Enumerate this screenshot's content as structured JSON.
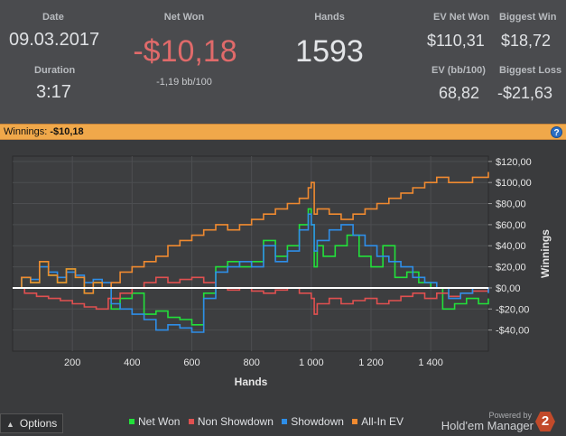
{
  "stats": {
    "date_label": "Date",
    "date_value": "09.03.2017",
    "duration_label": "Duration",
    "duration_value": "3:17",
    "netwon_label": "Net Won",
    "netwon_value": "-$10,18",
    "netwon_bb": "-1,19 bb/100",
    "hands_label": "Hands",
    "hands_value": "1593",
    "evnetwon_label": "EV Net Won",
    "evnetwon_value": "$110,31",
    "evbb_label": "EV (bb/100)",
    "evbb_value": "68,82",
    "biggestwin_label": "Biggest Win",
    "biggestwin_value": "$18,72",
    "biggestloss_label": "Biggest Loss",
    "biggestloss_value": "-$21,63"
  },
  "winbar": {
    "label": "Winnings:",
    "value": "-$10,18",
    "help_icon": "?"
  },
  "footer": {
    "options_label": "Options",
    "options_icon": "caret-up-icon",
    "powered_by": "Powered by",
    "brand": "Hold'em Manager",
    "logo_text": "2"
  },
  "colors": {
    "net_won": "#22e03a",
    "non_showdown": "#e05050",
    "showdown": "#2e8ee8",
    "allin_ev": "#f08a30",
    "accent_bar": "#f0a84a"
  },
  "chart_data": {
    "type": "line",
    "xlabel": "Hands",
    "ylabel": "Winnings",
    "xlim": [
      0,
      1593
    ],
    "ylim": [
      -60,
      125
    ],
    "x_ticks": [
      200,
      400,
      600,
      800,
      1000,
      1200,
      1400
    ],
    "x_tick_labels": [
      "200",
      "400",
      "600",
      "800",
      "1 000",
      "1 200",
      "1 400"
    ],
    "y_ticks": [
      -40,
      -20,
      0,
      20,
      40,
      60,
      80,
      100,
      120
    ],
    "y_tick_labels": [
      "-$40,00",
      "-$20,00",
      "$0,00",
      "$20,00",
      "$40,00",
      "$60,00",
      "$80,00",
      "$100,00",
      "$120,00"
    ],
    "grid": true,
    "legend_position": "bottom",
    "series": [
      {
        "name": "Net Won",
        "color": "#22e03a",
        "x": [
          0,
          30,
          60,
          90,
          120,
          150,
          180,
          210,
          240,
          270,
          300,
          330,
          360,
          400,
          440,
          480,
          520,
          560,
          600,
          640,
          680,
          720,
          760,
          800,
          840,
          880,
          920,
          960,
          990,
          1000,
          1010,
          1020,
          1040,
          1080,
          1120,
          1160,
          1200,
          1240,
          1280,
          1320,
          1360,
          1400,
          1440,
          1480,
          1520,
          1560,
          1593
        ],
        "y": [
          0,
          10,
          5,
          25,
          12,
          5,
          18,
          10,
          -5,
          5,
          0,
          -20,
          -10,
          -5,
          -25,
          -22,
          -28,
          -30,
          -35,
          -5,
          20,
          25,
          20,
          25,
          45,
          30,
          40,
          60,
          75,
          60,
          20,
          40,
          30,
          40,
          50,
          30,
          20,
          40,
          10,
          15,
          5,
          0,
          -20,
          -15,
          -10,
          -15,
          -10
        ]
      },
      {
        "name": "Non Showdown",
        "color": "#e05050",
        "x": [
          0,
          40,
          80,
          120,
          160,
          200,
          240,
          280,
          320,
          360,
          400,
          440,
          480,
          520,
          560,
          600,
          640,
          680,
          720,
          760,
          800,
          840,
          880,
          920,
          960,
          1000,
          1010,
          1020,
          1060,
          1100,
          1140,
          1180,
          1220,
          1260,
          1300,
          1340,
          1380,
          1420,
          1460,
          1500,
          1540,
          1593
        ],
        "y": [
          0,
          -5,
          -8,
          -10,
          -12,
          -15,
          -18,
          -20,
          -10,
          -5,
          0,
          5,
          10,
          5,
          8,
          10,
          5,
          0,
          -2,
          0,
          -3,
          -5,
          -2,
          0,
          -5,
          -10,
          -25,
          -15,
          -10,
          -15,
          -12,
          -10,
          -15,
          -12,
          -8,
          -5,
          -10,
          -5,
          -8,
          -5,
          -3,
          0
        ]
      },
      {
        "name": "Showdown",
        "color": "#2e8ee8",
        "x": [
          0,
          30,
          60,
          90,
          120,
          150,
          180,
          210,
          240,
          270,
          300,
          330,
          360,
          400,
          440,
          480,
          520,
          560,
          600,
          640,
          680,
          720,
          760,
          800,
          840,
          880,
          920,
          960,
          990,
          1000,
          1010,
          1020,
          1060,
          1100,
          1140,
          1180,
          1220,
          1260,
          1300,
          1340,
          1380,
          1420,
          1460,
          1500,
          1540,
          1593
        ],
        "y": [
          0,
          10,
          8,
          20,
          15,
          10,
          15,
          12,
          5,
          8,
          5,
          -15,
          -20,
          -25,
          -30,
          -40,
          -35,
          -38,
          -42,
          -10,
          15,
          20,
          25,
          20,
          40,
          25,
          35,
          55,
          70,
          60,
          35,
          45,
          55,
          60,
          50,
          40,
          30,
          25,
          20,
          10,
          5,
          0,
          -10,
          -5,
          0,
          -5
        ]
      },
      {
        "name": "All-In EV",
        "color": "#f08a30",
        "x": [
          0,
          30,
          60,
          90,
          120,
          150,
          180,
          210,
          240,
          270,
          300,
          330,
          360,
          400,
          440,
          480,
          520,
          560,
          600,
          640,
          680,
          720,
          760,
          800,
          840,
          880,
          920,
          960,
          990,
          1000,
          1010,
          1020,
          1060,
          1100,
          1140,
          1180,
          1220,
          1260,
          1300,
          1340,
          1380,
          1420,
          1460,
          1500,
          1540,
          1593
        ],
        "y": [
          0,
          10,
          5,
          25,
          12,
          5,
          18,
          10,
          -5,
          5,
          0,
          5,
          15,
          20,
          25,
          30,
          40,
          45,
          50,
          55,
          60,
          55,
          60,
          65,
          70,
          75,
          80,
          85,
          95,
          100,
          70,
          75,
          70,
          65,
          70,
          75,
          80,
          85,
          90,
          95,
          100,
          105,
          100,
          100,
          105,
          110
        ]
      }
    ]
  }
}
